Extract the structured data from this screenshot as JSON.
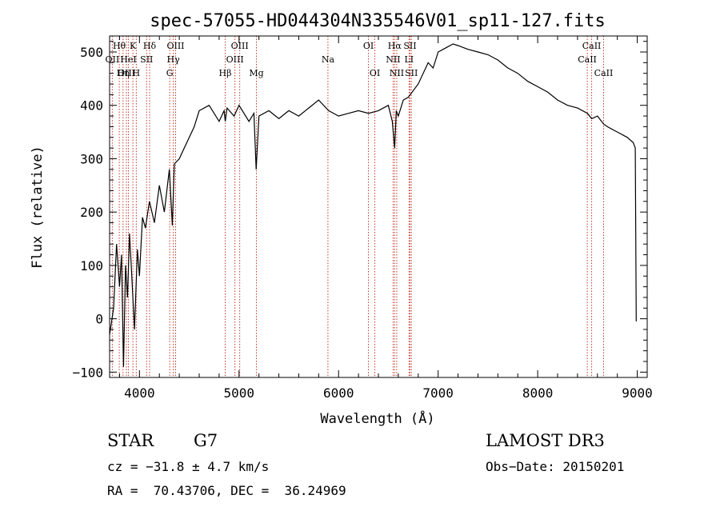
{
  "chart_data": {
    "type": "line",
    "title": "spec-57055-HD044304N335546V01_sp11-127.fits",
    "xlabel": "Wavelength (Å)",
    "ylabel": "Flux (relative)",
    "xlim": [
      3700,
      9100
    ],
    "ylim": [
      -110,
      530
    ],
    "xticks": [
      4000,
      5000,
      6000,
      7000,
      8000,
      9000
    ],
    "yticks": [
      -100,
      0,
      100,
      200,
      300,
      400,
      500
    ],
    "series": [
      {
        "name": "spectrum",
        "x": [
          3700,
          3740,
          3770,
          3800,
          3820,
          3840,
          3860,
          3880,
          3900,
          3920,
          3950,
          3980,
          4000,
          4030,
          4060,
          4100,
          4150,
          4200,
          4250,
          4300,
          4330,
          4350,
          4400,
          4450,
          4500,
          4550,
          4600,
          4700,
          4800,
          4850,
          4862,
          4880,
          4950,
          5000,
          5100,
          5150,
          5172,
          5200,
          5300,
          5400,
          5500,
          5600,
          5700,
          5800,
          5900,
          6000,
          6100,
          6200,
          6300,
          6400,
          6500,
          6540,
          6563,
          6580,
          6600,
          6650,
          6700,
          6800,
          6900,
          6950,
          7000,
          7050,
          7100,
          7150,
          7200,
          7300,
          7400,
          7500,
          7600,
          7700,
          7800,
          7900,
          8000,
          8100,
          8200,
          8300,
          8400,
          8500,
          8542,
          8600,
          8662,
          8700,
          8800,
          8900,
          8960,
          8980,
          8990
        ],
        "y": [
          -30,
          20,
          140,
          60,
          120,
          -90,
          100,
          40,
          160,
          90,
          -20,
          130,
          80,
          190,
          170,
          220,
          180,
          250,
          200,
          280,
          175,
          290,
          300,
          320,
          340,
          360,
          390,
          400,
          370,
          390,
          370,
          395,
          380,
          400,
          370,
          385,
          280,
          380,
          390,
          375,
          390,
          380,
          395,
          410,
          390,
          380,
          385,
          390,
          385,
          390,
          400,
          370,
          320,
          390,
          380,
          410,
          415,
          440,
          480,
          470,
          500,
          505,
          510,
          515,
          512,
          505,
          500,
          495,
          485,
          470,
          460,
          445,
          435,
          425,
          410,
          400,
          395,
          385,
          375,
          380,
          365,
          360,
          350,
          340,
          330,
          320,
          -5
        ]
      }
    ],
    "spectral_lines": [
      {
        "name": "Hθ",
        "x": 3797,
        "row": 1
      },
      {
        "name": "OII",
        "x": 3727,
        "row": 2
      },
      {
        "name": "OIII",
        "x": 3869,
        "row": 3
      },
      {
        "name": "K",
        "x": 3934,
        "row": 1
      },
      {
        "name": "H",
        "x": 3968,
        "row": 3
      },
      {
        "name": "HeI",
        "x": 3889,
        "row": 2
      },
      {
        "name": "Hη",
        "x": 3835,
        "row": 3
      },
      {
        "name": "SII",
        "x": 4072,
        "row": 2
      },
      {
        "name": "Hδ",
        "x": 4102,
        "row": 1
      },
      {
        "name": "OIII",
        "x": 4363,
        "row": 1
      },
      {
        "name": "Hγ",
        "x": 4340,
        "row": 2
      },
      {
        "name": "G",
        "x": 4304,
        "row": 3
      },
      {
        "name": "Hβ",
        "x": 4861,
        "row": 3
      },
      {
        "name": "OIII",
        "x": 5007,
        "row": 1
      },
      {
        "name": "OIII",
        "x": 4959,
        "row": 2
      },
      {
        "name": "Mg",
        "x": 5175,
        "row": 3
      },
      {
        "name": "Na",
        "x": 5893,
        "row": 2
      },
      {
        "name": "OI",
        "x": 6300,
        "row": 1
      },
      {
        "name": "OI",
        "x": 6364,
        "row": 3
      },
      {
        "name": "Hα",
        "x": 6563,
        "row": 1
      },
      {
        "name": "SII",
        "x": 6717,
        "row": 1
      },
      {
        "name": "NII",
        "x": 6548,
        "row": 2
      },
      {
        "name": "LI",
        "x": 6708,
        "row": 2
      },
      {
        "name": "NII",
        "x": 6584,
        "row": 3
      },
      {
        "name": "SII",
        "x": 6731,
        "row": 3
      },
      {
        "name": "CaII",
        "x": 8542,
        "row": 1
      },
      {
        "name": "CaII",
        "x": 8498,
        "row": 2
      },
      {
        "name": "CaII",
        "x": 8662,
        "row": 3
      }
    ]
  },
  "info": {
    "object_class": "STAR",
    "subclass": "G7",
    "survey": "LAMOST DR3",
    "cz": "cz = −31.8 ± 4.7 km/s",
    "obs_date": "Obs−Date: 20150201",
    "radec": "RA =  70.43706, DEC =  36.24969"
  }
}
